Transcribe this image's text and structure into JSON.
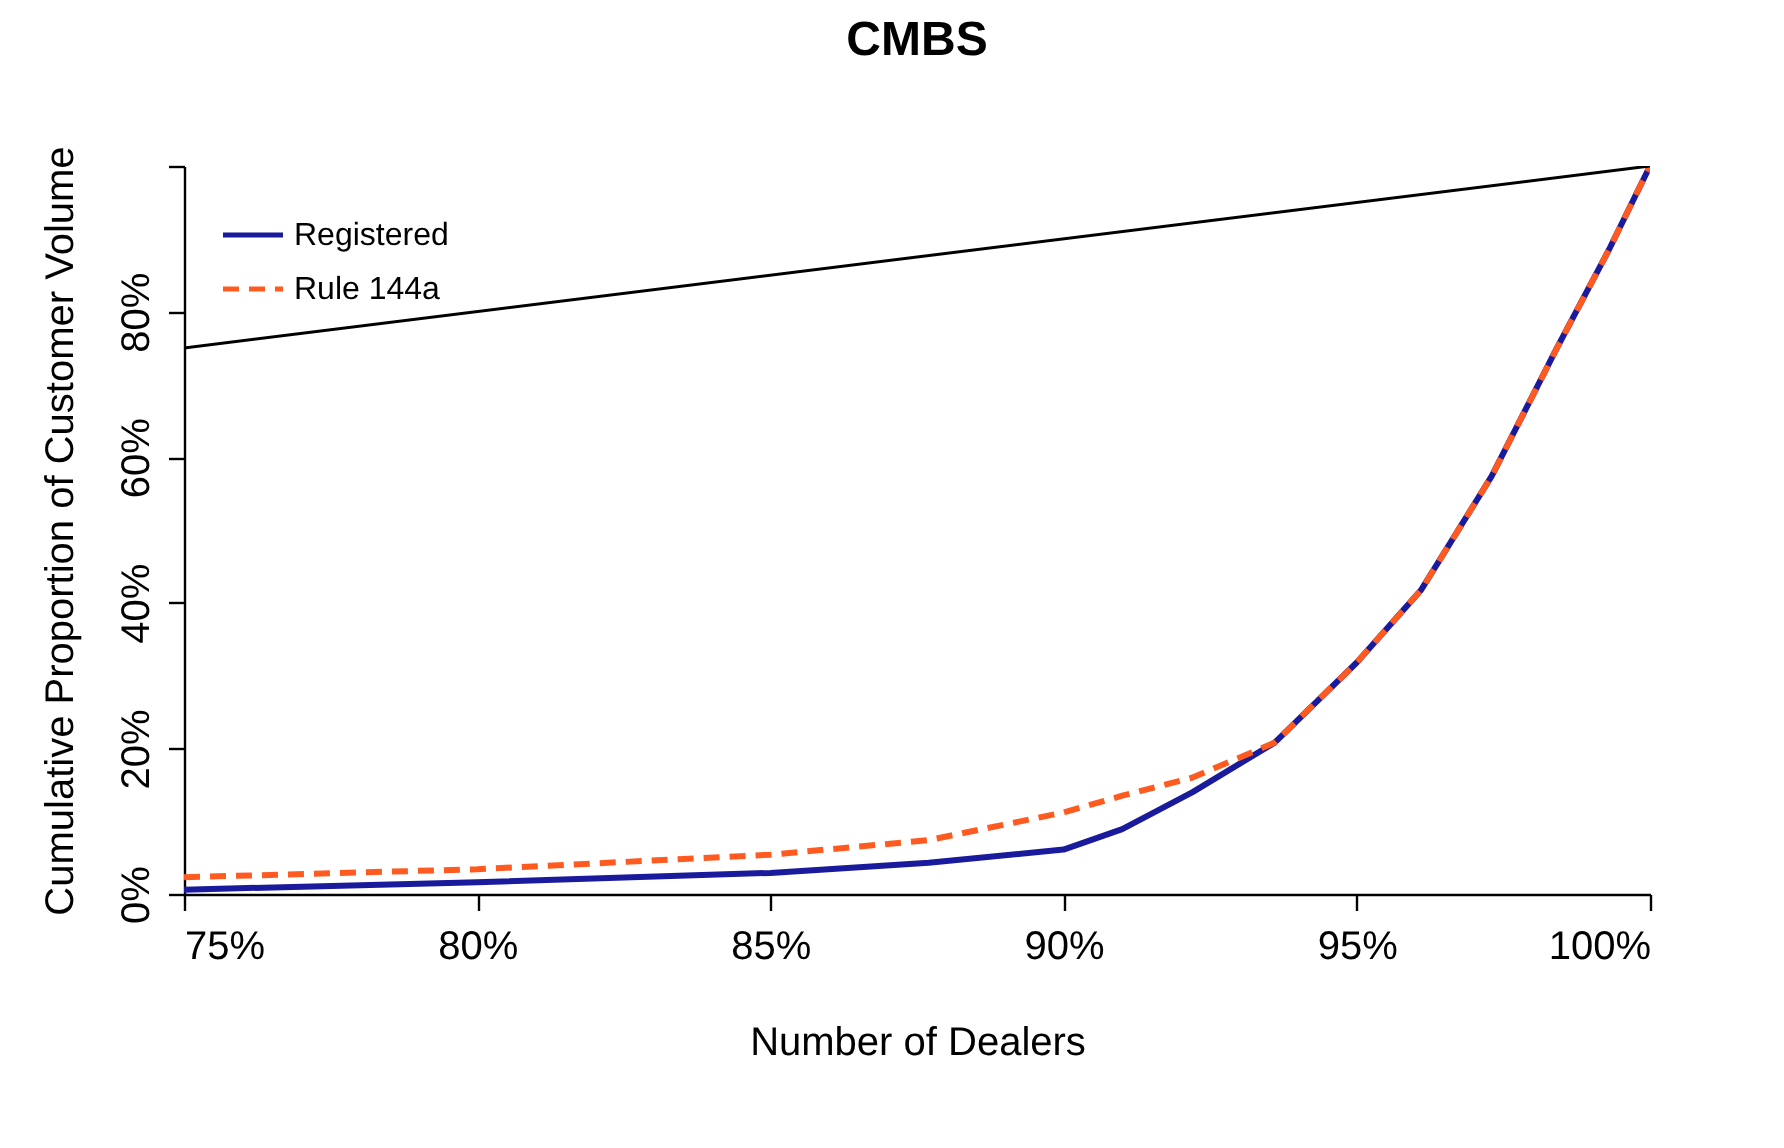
{
  "chart_data": {
    "type": "line",
    "title": "CMBS",
    "xlabel": "Number of Dealers",
    "ylabel": "Cumulative Proportion of Customer Volume",
    "x": [
      75,
      80,
      85,
      87.7,
      90,
      91,
      92.2,
      93.6,
      95,
      96.1,
      97.3,
      98.4,
      99.3,
      100
    ],
    "series": [
      {
        "name": "Registered",
        "color": "#1a1a9c",
        "line_style": "solid",
        "values": [
          0.6,
          1.6,
          2.9,
          4.3,
          6.1,
          8.9,
          14,
          20.8,
          31.8,
          41.8,
          57.4,
          74.8,
          88.5,
          100
        ]
      },
      {
        "name": "Rule 144a",
        "color": "#ff5a1f",
        "line_style": "dashed",
        "values": [
          2.3,
          3.4,
          5.4,
          7.4,
          11.2,
          13.5,
          16,
          20.8,
          31.8,
          41.8,
          57.4,
          74.8,
          88.5,
          100
        ]
      },
      {
        "type": "line",
        "color": "#000000",
        "line_style": "solid",
        "x": [
          75,
          100
        ],
        "values": [
          75,
          100
        ]
      }
    ],
    "xlim": [
      75,
      100
    ],
    "ylim": [
      0,
      100
    ],
    "xticks": [
      {
        "value": 75,
        "label": "75%"
      },
      {
        "value": 80,
        "label": "80%"
      },
      {
        "value": 85,
        "label": "85%"
      },
      {
        "value": 90,
        "label": "90%"
      },
      {
        "value": 95,
        "label": "95%"
      },
      {
        "value": 100,
        "label": "100%"
      }
    ],
    "yticks": [
      {
        "value": 0,
        "label": "0%"
      },
      {
        "value": 20,
        "label": "20%"
      },
      {
        "value": 40,
        "label": "40%"
      },
      {
        "value": 60,
        "label": "60%"
      },
      {
        "value": 80,
        "label": "80%"
      },
      {
        "value": 100,
        "label": null
      }
    ],
    "grid": false,
    "legend": "top left",
    "marker": "none"
  }
}
